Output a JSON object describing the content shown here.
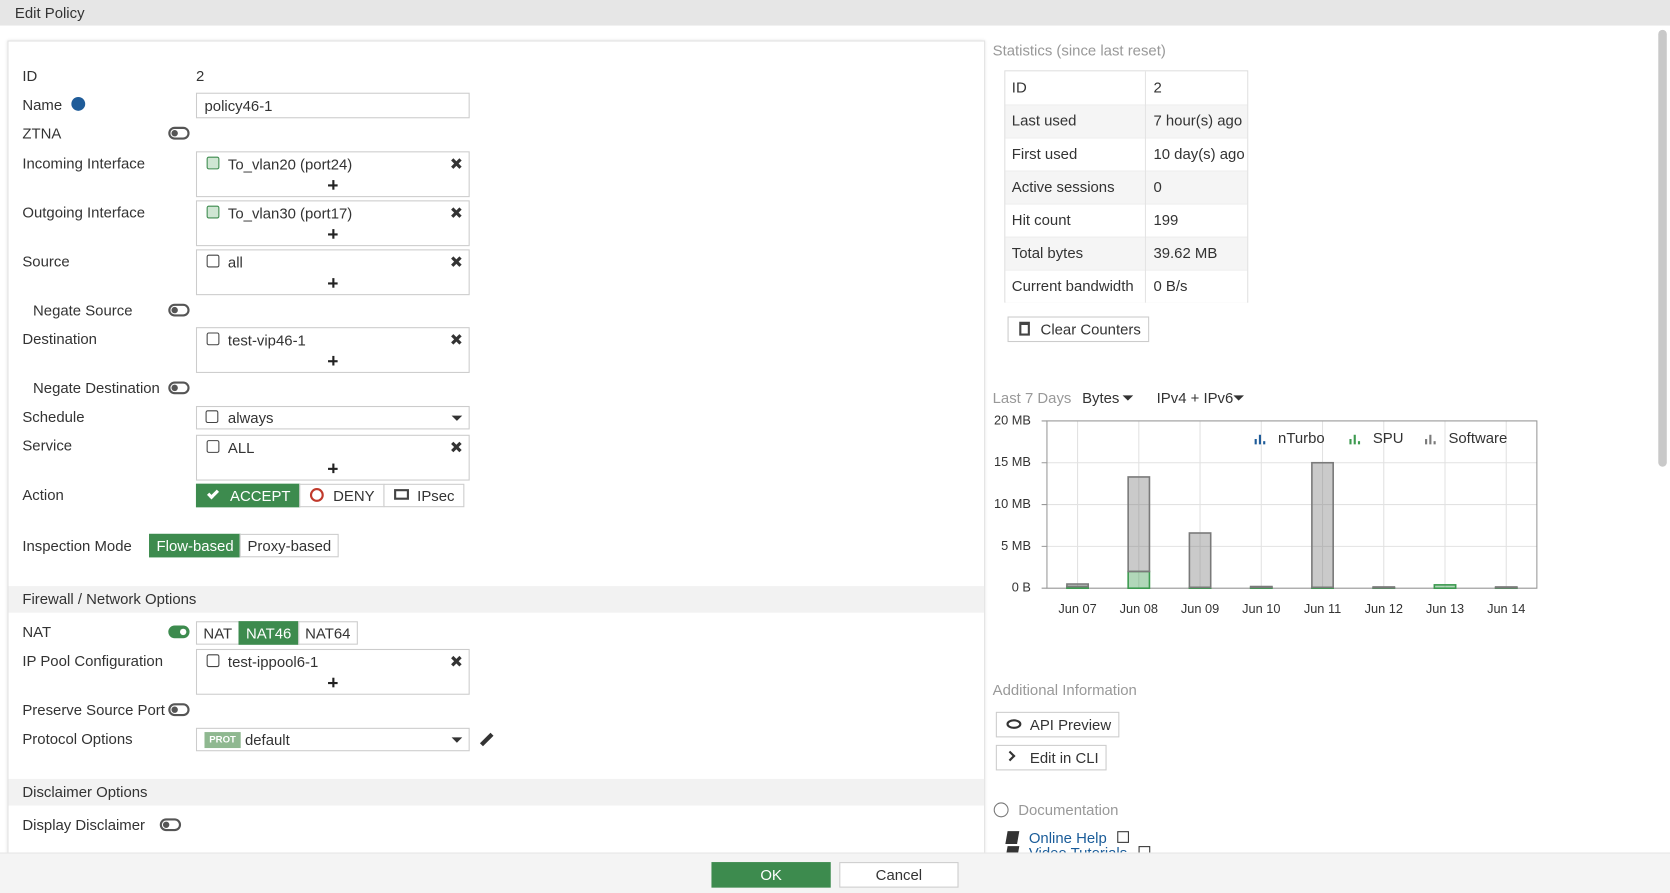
{
  "header": {
    "title": "Edit Policy"
  },
  "form": {
    "id": {
      "label": "ID",
      "value": "2"
    },
    "name": {
      "label": "Name",
      "value": "policy46-1"
    },
    "ztna": {
      "label": "ZTNA",
      "on": false
    },
    "incoming_interface": {
      "label": "Incoming Interface",
      "items": [
        "To_vlan20 (port24)"
      ]
    },
    "outgoing_interface": {
      "label": "Outgoing Interface",
      "items": [
        "To_vlan30 (port17)"
      ]
    },
    "source": {
      "label": "Source",
      "items": [
        "all"
      ]
    },
    "negate_source": {
      "label": "Negate Source",
      "on": false
    },
    "destination": {
      "label": "Destination",
      "items": [
        "test-vip46-1"
      ]
    },
    "negate_destination": {
      "label": "Negate Destination",
      "on": false
    },
    "schedule": {
      "label": "Schedule",
      "value": "always"
    },
    "service": {
      "label": "Service",
      "items": [
        "ALL"
      ]
    },
    "action": {
      "label": "Action",
      "options": [
        "ACCEPT",
        "DENY",
        "IPsec"
      ],
      "selected": 0
    },
    "inspection_mode": {
      "label": "Inspection Mode",
      "options": [
        "Flow-based",
        "Proxy-based"
      ],
      "selected": 0
    },
    "nat": {
      "label": "NAT",
      "on": true,
      "options": [
        "NAT",
        "NAT46",
        "NAT64"
      ],
      "selected": 1
    },
    "ip_pool": {
      "label": "IP Pool Configuration",
      "items": [
        "test-ippool6-1"
      ]
    },
    "preserve_source_port": {
      "label": "Preserve Source Port",
      "on": false
    },
    "protocol_options": {
      "label": "Protocol Options",
      "badge": "PROT",
      "value": "default"
    },
    "display_disclaimer": {
      "label": "Display Disclaimer",
      "on": false
    }
  },
  "sections": [
    "Firewall / Network Options",
    "Disclaimer Options"
  ],
  "statistics": {
    "title": "Statistics (since last reset)",
    "rows": [
      [
        "ID",
        "2"
      ],
      [
        "Last used",
        "7 hour(s) ago"
      ],
      [
        "First used",
        "10 day(s) ago"
      ],
      [
        "Active sessions",
        "0"
      ],
      [
        "Hit count",
        "199"
      ],
      [
        "Total bytes",
        "39.62 MB"
      ],
      [
        "Current bandwidth",
        "0 B/s"
      ]
    ],
    "button": "Clear Counters"
  },
  "chart_data": {
    "type": "bar",
    "title": "Last 7 Days",
    "metric": "Bytes",
    "protocol": "IPv4 + IPv6",
    "stacked": true,
    "categories": [
      "Jun 07",
      "Jun 08",
      "Jun 09",
      "Jun 10",
      "Jun 11",
      "Jun 12",
      "Jun 13",
      "Jun 14"
    ],
    "series": [
      {
        "name": "nTurbo",
        "color": "#1f5c99",
        "values": [
          0,
          0,
          0,
          0,
          0,
          0,
          0,
          0
        ]
      },
      {
        "name": "SPU",
        "color": "#3d9a50",
        "values": [
          0.2,
          2,
          0.1,
          0.1,
          0.1,
          0.05,
          0.4,
          0.05
        ]
      },
      {
        "name": "Software",
        "color": "#7a7a7a",
        "values": [
          0.3,
          11.3,
          6.5,
          0.1,
          14.9,
          0.1,
          0,
          0.1
        ]
      }
    ],
    "ylim": [
      0,
      20
    ],
    "yticks": [
      {
        "value": 0,
        "label": "0 B"
      },
      {
        "value": 5,
        "label": "5 MB"
      },
      {
        "value": 10,
        "label": "10 MB"
      },
      {
        "value": 15,
        "label": "15 MB"
      },
      {
        "value": 20,
        "label": "20 MB"
      }
    ],
    "grid": true,
    "legend": "top-right"
  },
  "additional": {
    "title": "Additional Information",
    "buttons": [
      "API Preview",
      "Edit in CLI"
    ]
  },
  "documentation": {
    "title": "Documentation",
    "links": [
      "Online Help",
      "Video Tutorials"
    ]
  },
  "footer": {
    "ok": "OK",
    "cancel": "Cancel"
  }
}
